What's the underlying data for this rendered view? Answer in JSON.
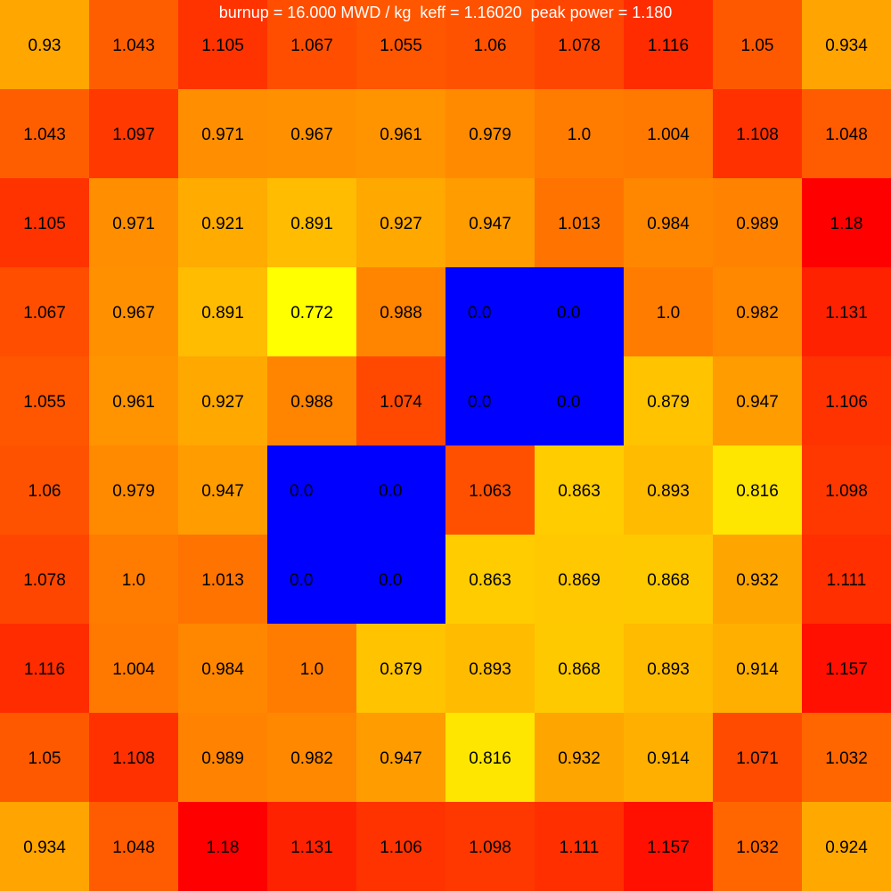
{
  "title": "burnup = 16.000 MWD / kg  keff = 1.16020  peak power = 1.180",
  "chart_data": {
    "type": "heatmap",
    "title": "burnup = 16.000 MWD / kg  keff = 1.16020  peak power = 1.180",
    "grid": false,
    "colormap": {
      "zero": "#0000ff",
      "low": "#ffff00",
      "mid": "#ff8c00",
      "high": "#ff0000"
    },
    "value_range": [
      0.772,
      1.18
    ],
    "rows": [
      [
        0.93,
        1.043,
        1.105,
        1.067,
        1.055,
        1.06,
        1.078,
        1.116,
        1.05,
        0.934
      ],
      [
        1.043,
        1.097,
        0.971,
        0.967,
        0.961,
        0.979,
        1.0,
        1.004,
        1.108,
        1.048
      ],
      [
        1.105,
        0.971,
        0.921,
        0.891,
        0.927,
        0.947,
        1.013,
        0.984,
        0.989,
        1.18
      ],
      [
        1.067,
        0.967,
        0.891,
        0.772,
        0.988,
        0.0,
        0.0,
        1.0,
        0.982,
        1.131
      ],
      [
        1.055,
        0.961,
        0.927,
        0.988,
        1.074,
        0.0,
        0.0,
        0.879,
        0.947,
        1.106
      ],
      [
        1.06,
        0.979,
        0.947,
        0.0,
        0.0,
        1.063,
        0.863,
        0.893,
        0.816,
        1.098
      ],
      [
        1.078,
        1.0,
        1.013,
        0.0,
        0.0,
        0.863,
        0.869,
        0.868,
        0.932,
        1.111
      ],
      [
        1.116,
        1.004,
        0.984,
        1.0,
        0.879,
        0.893,
        0.868,
        0.893,
        0.914,
        1.157
      ],
      [
        1.05,
        1.108,
        0.989,
        0.982,
        0.947,
        0.816,
        0.932,
        0.914,
        1.071,
        1.032
      ],
      [
        0.934,
        1.048,
        1.18,
        1.131,
        1.106,
        1.098,
        1.111,
        1.157,
        1.032,
        0.924
      ]
    ],
    "labels": [
      [
        "0.93",
        "1.043",
        "1.105",
        "1.067",
        "1.055",
        "1.06",
        "1.078",
        "1.116",
        "1.05",
        "0.934"
      ],
      [
        "1.043",
        "1.097",
        "0.971",
        "0.967",
        "0.961",
        "0.979",
        "1.0",
        "1.004",
        "1.108",
        "1.048"
      ],
      [
        "1.105",
        "0.971",
        "0.921",
        "0.891",
        "0.927",
        "0.947",
        "1.013",
        "0.984",
        "0.989",
        "1.18"
      ],
      [
        "1.067",
        "0.967",
        "0.891",
        "0.772",
        "0.988",
        "0.0",
        "0.0",
        "1.0",
        "0.982",
        "1.131"
      ],
      [
        "1.055",
        "0.961",
        "0.927",
        "0.988",
        "1.074",
        "0.0",
        "0.0",
        "0.879",
        "0.947",
        "1.106"
      ],
      [
        "1.06",
        "0.979",
        "0.947",
        "0.0",
        "0.0",
        "1.063",
        "0.863",
        "0.893",
        "0.816",
        "1.098"
      ],
      [
        "1.078",
        "1.0",
        "1.013",
        "0.0",
        "0.0",
        "0.863",
        "0.869",
        "0.868",
        "0.932",
        "1.111"
      ],
      [
        "1.116",
        "1.004",
        "0.984",
        "1.0",
        "0.879",
        "0.893",
        "0.868",
        "0.893",
        "0.914",
        "1.157"
      ],
      [
        "1.05",
        "1.108",
        "0.989",
        "0.982",
        "0.947",
        "0.816",
        "0.932",
        "0.914",
        "1.071",
        "1.032"
      ],
      [
        "0.934",
        "1.048",
        "1.18",
        "1.131",
        "1.106",
        "1.098",
        "1.111",
        "1.157",
        "1.032",
        "0.924"
      ]
    ]
  }
}
